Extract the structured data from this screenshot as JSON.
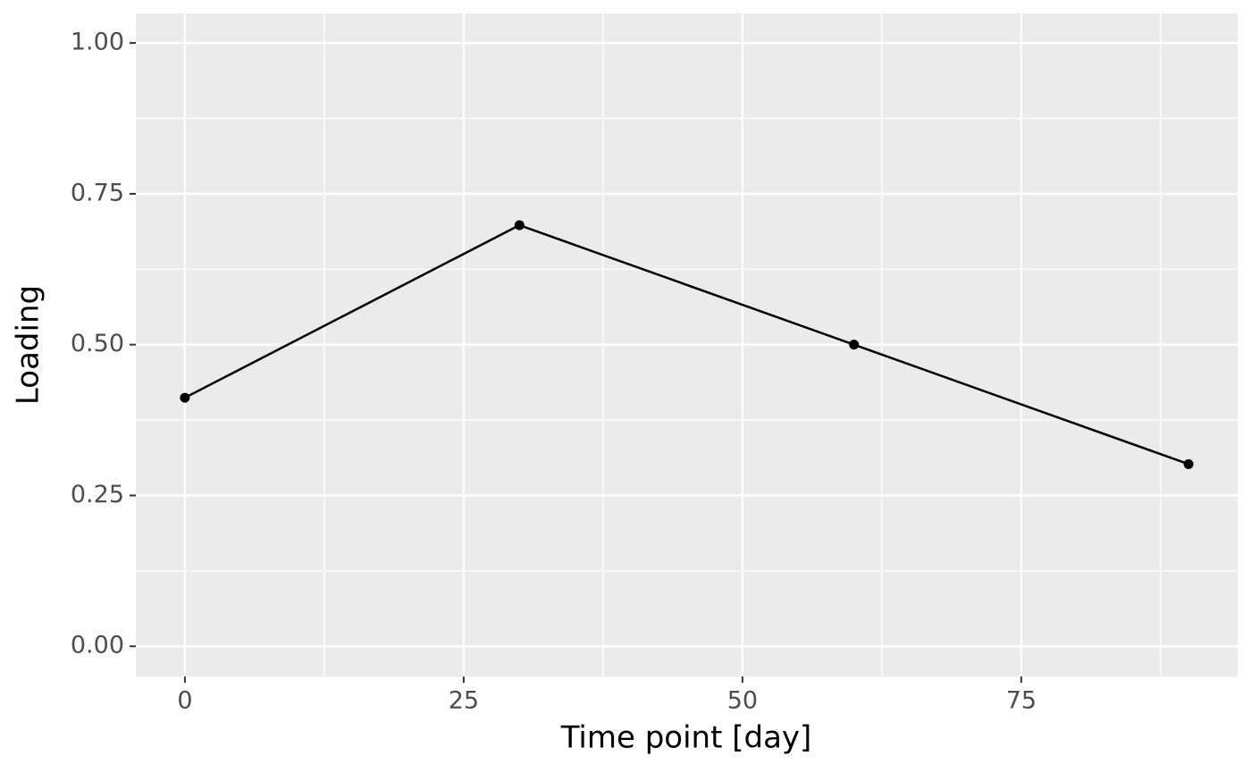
{
  "chart_data": {
    "type": "line",
    "x_label": "Time point [day]",
    "y_label": "Loading",
    "x": [
      0,
      30,
      60,
      90
    ],
    "series": [
      {
        "color": "#000000",
        "values": [
          0.412,
          0.698,
          0.5,
          0.302
        ]
      }
    ],
    "xlim": [
      -4.4,
      94.4
    ],
    "xticks": [
      0,
      25,
      50,
      75
    ],
    "x_minor_ticks": [
      12.5,
      37.5,
      62.5,
      87.5
    ],
    "ylim": [
      -0.05,
      1.049
    ],
    "yticks": [
      {
        "value": 0,
        "label": "0.00"
      },
      {
        "value": 0.25,
        "label": "0.25"
      },
      {
        "value": 0.5,
        "label": "0.50"
      },
      {
        "value": 0.75,
        "label": "0.75"
      },
      {
        "value": 1,
        "label": "1.00"
      }
    ],
    "y_minor_ticks": [
      0.125,
      0.375,
      0.625,
      0.875
    ],
    "grid": true
  }
}
